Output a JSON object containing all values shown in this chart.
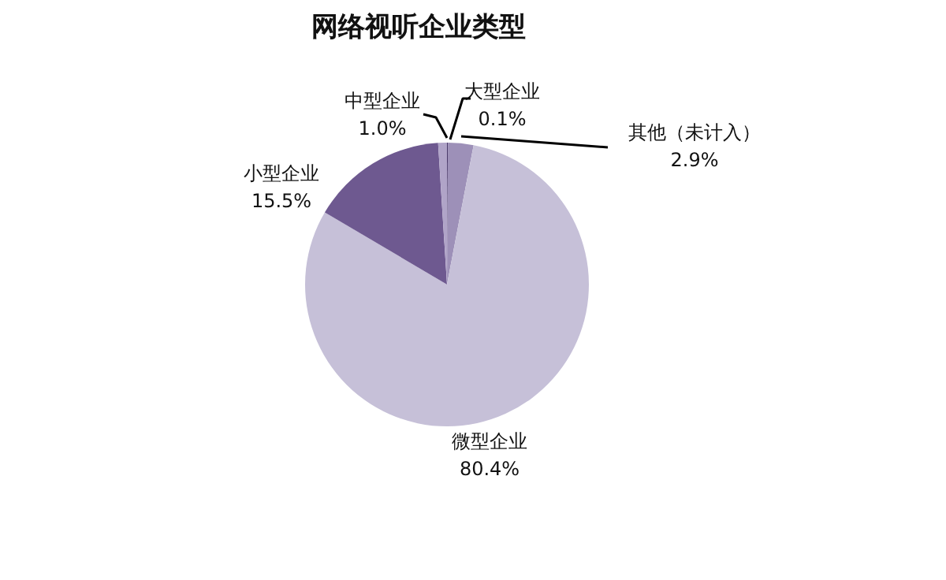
{
  "chart_data": {
    "type": "pie",
    "title": "网络视听企业类型",
    "categories": [
      "大型企业",
      "其他（未计入）",
      "微型企业",
      "小型企业",
      "中型企业"
    ],
    "values": [
      0.1,
      2.9,
      80.4,
      15.5,
      1.0
    ],
    "value_labels": [
      "0.1%",
      "2.9%",
      "80.4%",
      "15.5%",
      "1.0%"
    ],
    "colors": [
      "#4b3b6b",
      "#9d90b8",
      "#c6c0d8",
      "#6e5990",
      "#b0a4c8"
    ]
  }
}
